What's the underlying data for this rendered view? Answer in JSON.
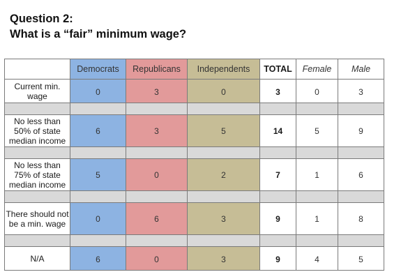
{
  "title": {
    "line1": "Question 2:",
    "line2": "What is a “fair” minimum wage?"
  },
  "chart_data": {
    "type": "table",
    "columns": [
      "",
      "Democrats",
      "Republicans",
      "Independents",
      "TOTAL",
      "Female",
      "Male"
    ],
    "rows": [
      {
        "label": "Current min. wage",
        "values": [
          0,
          3,
          0,
          3,
          0,
          3
        ]
      },
      {
        "label": "No less than 50% of state median income",
        "values": [
          6,
          3,
          5,
          14,
          5,
          9
        ]
      },
      {
        "label": "No less than 75% of state median income",
        "values": [
          5,
          0,
          2,
          7,
          1,
          6
        ]
      },
      {
        "label": "There should not be a min. wage",
        "values": [
          0,
          6,
          3,
          9,
          1,
          8
        ]
      },
      {
        "label": "N/A",
        "values": [
          6,
          0,
          3,
          9,
          4,
          5
        ]
      }
    ],
    "colors": {
      "Democrats": "#8db3e2",
      "Republicans": "#e29a9a",
      "Independents": "#c6bd96",
      "separator": "#d9d9d9"
    }
  }
}
